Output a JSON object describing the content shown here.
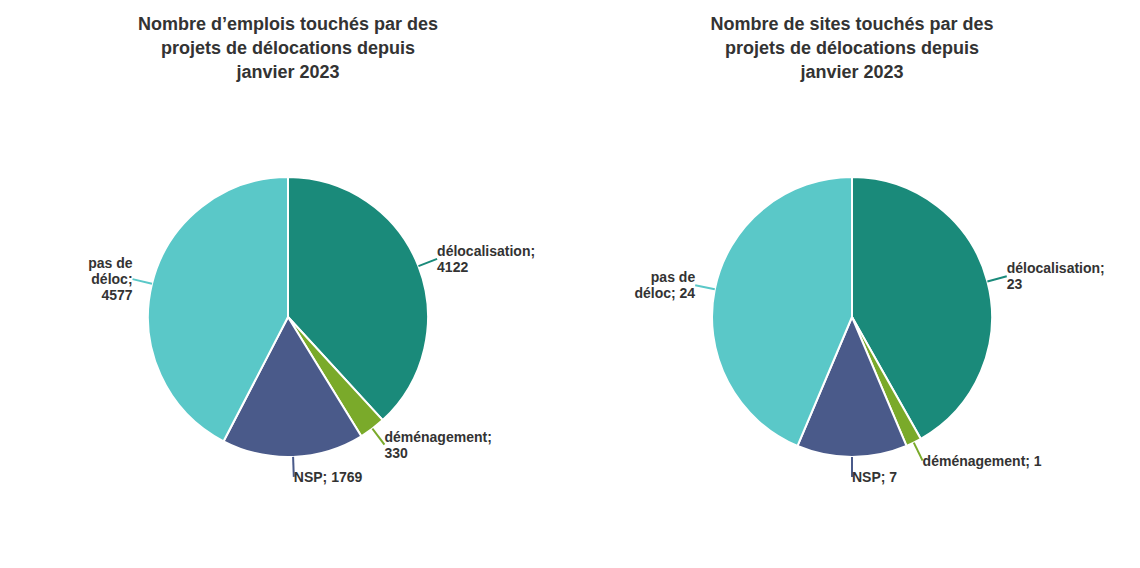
{
  "chart_data": [
    {
      "type": "pie",
      "title": "Nombre d’emplois touchés par des\nprojets de délocations depuis\njanvier 2023",
      "values": [
        4122,
        330,
        1769,
        4577
      ],
      "value_labels": [
        "délocalisation;\n4122",
        "déménagement;\n330",
        "NSP; 1769",
        "pas de\ndéloc;\n4577"
      ],
      "colors": [
        "#1a8a7a",
        "#7aaa2a",
        "#4a5a8a",
        "#5ac8c8"
      ],
      "data_labels": true
    },
    {
      "type": "pie",
      "title": "Nombre de sites touchés par des\nprojets de délocations depuis\njanvier 2023",
      "values": [
        23,
        1,
        7,
        24
      ],
      "value_labels": [
        "délocalisation;\n23",
        "déménagement; 1",
        "NSP; 7",
        "pas de\ndéloc; 24"
      ],
      "colors": [
        "#1a8a7a",
        "#7aaa2a",
        "#4a5a8a",
        "#5ac8c8"
      ],
      "data_labels": true
    }
  ]
}
